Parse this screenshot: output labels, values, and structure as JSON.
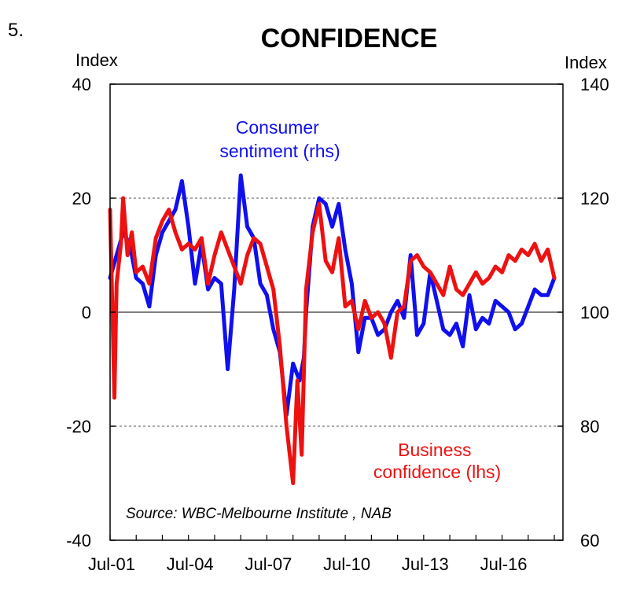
{
  "figure_number": "5.",
  "chart_data": {
    "type": "line",
    "title": "CONFIDENCE",
    "left_axis": {
      "unit": "Index",
      "ylim": [
        -40,
        40
      ],
      "ticks": [
        40,
        20,
        0,
        -20,
        -40
      ]
    },
    "right_axis": {
      "unit": "Index",
      "ylim": [
        60,
        140
      ],
      "ticks": [
        140,
        120,
        100,
        80,
        60
      ]
    },
    "x_axis": {
      "ticks": [
        "Jul-01",
        "Jul-04",
        "Jul-07",
        "Jul-10",
        "Jul-13",
        "Jul-16"
      ]
    },
    "grid": "dotted horizontal at 20 and -20 (lhs); solid zero line",
    "annotations": {
      "consumer": [
        "Consumer",
        "sentiment (rhs)"
      ],
      "business": [
        "Business",
        "confidence (lhs)"
      ],
      "source": "Source: WBC-Melbourne Institute , NAB"
    },
    "colors": {
      "consumer": "#1010ee",
      "business": "#ee1111",
      "axes": "#000000",
      "grid": "#555555"
    },
    "series": [
      {
        "name": "Consumer sentiment",
        "axis": "right",
        "x": [
          "2001-07",
          "2001-10",
          "2002-01",
          "2002-04",
          "2002-07",
          "2002-10",
          "2003-01",
          "2003-04",
          "2003-07",
          "2003-10",
          "2004-01",
          "2004-04",
          "2004-07",
          "2004-10",
          "2005-01",
          "2005-04",
          "2005-07",
          "2005-10",
          "2006-01",
          "2006-04",
          "2006-07",
          "2006-10",
          "2007-01",
          "2007-04",
          "2007-07",
          "2007-10",
          "2008-01",
          "2008-04",
          "2008-07",
          "2008-10",
          "2008-12",
          "2009-01",
          "2009-04",
          "2009-07",
          "2009-10",
          "2010-01",
          "2010-04",
          "2010-07",
          "2010-10",
          "2011-01",
          "2011-04",
          "2011-07",
          "2011-10",
          "2012-01",
          "2012-04",
          "2012-07",
          "2012-10",
          "2013-01",
          "2013-04",
          "2013-07",
          "2013-10",
          "2014-01",
          "2014-04",
          "2014-07",
          "2014-10",
          "2015-01",
          "2015-04",
          "2015-07",
          "2015-10",
          "2016-01",
          "2016-04",
          "2016-07",
          "2016-10",
          "2017-01",
          "2017-04",
          "2017-07",
          "2017-10",
          "2018-01",
          "2018-04",
          "2018-07"
        ],
        "values": [
          106,
          110,
          114,
          112,
          106,
          105,
          101,
          110,
          114,
          116,
          118,
          123,
          115,
          105,
          112,
          104,
          106,
          105,
          90,
          104,
          124,
          115,
          113,
          105,
          103,
          97,
          93,
          82,
          91,
          88,
          92,
          100,
          115,
          120,
          119,
          115,
          119,
          111,
          105,
          93,
          99,
          99,
          96,
          97,
          100,
          102,
          99,
          110,
          96,
          98,
          107,
          102,
          97,
          96,
          98,
          94,
          103,
          97,
          99,
          98,
          102,
          101,
          100,
          97,
          98,
          101,
          104,
          103,
          103,
          106
        ]
      },
      {
        "name": "Business confidence",
        "axis": "left",
        "x": [
          "2001-07",
          "2001-09",
          "2001-10",
          "2001-12",
          "2002-01",
          "2002-03",
          "2002-05",
          "2002-07",
          "2002-10",
          "2003-01",
          "2003-04",
          "2003-07",
          "2003-10",
          "2004-01",
          "2004-04",
          "2004-07",
          "2004-10",
          "2005-01",
          "2005-04",
          "2005-07",
          "2005-10",
          "2006-01",
          "2006-04",
          "2006-07",
          "2006-10",
          "2007-01",
          "2007-04",
          "2007-07",
          "2007-10",
          "2008-01",
          "2008-04",
          "2008-07",
          "2008-09",
          "2008-11",
          "2009-01",
          "2009-04",
          "2009-07",
          "2009-10",
          "2010-01",
          "2010-04",
          "2010-07",
          "2010-10",
          "2011-01",
          "2011-04",
          "2011-07",
          "2011-10",
          "2012-01",
          "2012-04",
          "2012-07",
          "2012-10",
          "2013-01",
          "2013-04",
          "2013-07",
          "2013-10",
          "2014-01",
          "2014-04",
          "2014-07",
          "2014-10",
          "2015-01",
          "2015-04",
          "2015-07",
          "2015-10",
          "2016-01",
          "2016-04",
          "2016-07",
          "2016-10",
          "2017-01",
          "2017-04",
          "2017-07",
          "2017-10",
          "2018-01",
          "2018-04",
          "2018-07"
        ],
        "values": [
          18,
          -15,
          5,
          12,
          20,
          10,
          14,
          7,
          8,
          5,
          13,
          16,
          18,
          14,
          11,
          12,
          11,
          13,
          5,
          10,
          14,
          11,
          8,
          5,
          10,
          13,
          12,
          8,
          4,
          -6,
          -20,
          -30,
          -12,
          -25,
          4,
          14,
          19,
          9,
          7,
          13,
          1,
          2,
          -3,
          2,
          -1,
          0,
          -2,
          -8,
          0,
          1,
          9,
          10,
          8,
          7,
          5,
          3,
          8,
          4,
          3,
          5,
          7,
          5,
          6,
          8,
          7,
          10,
          9,
          11,
          10,
          12,
          9,
          11,
          6
        ]
      }
    ]
  }
}
